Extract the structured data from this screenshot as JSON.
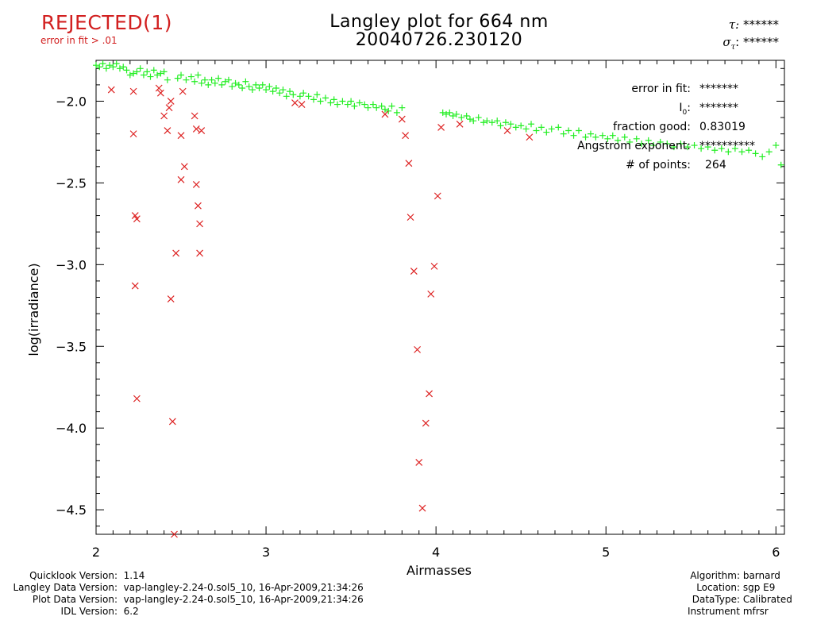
{
  "header": {
    "status": "REJECTED(1)",
    "status_sub": "error in fit > .01",
    "title_line1": "Langley plot for 664 nm",
    "title_line2": "20040726.230120",
    "tau_label": "τ:",
    "tau_value": "******",
    "sigma_label": "σ",
    "sigma_sub": "τ",
    "sigma_colon": ":",
    "sigma_value": "******"
  },
  "stats": {
    "error_label": "error in fit:",
    "error_value": "*******",
    "i0_label": "I",
    "i0_sub": "0",
    "i0_colon": ":",
    "i0_value": "*******",
    "fraction_label": "fraction good:",
    "fraction_value": "0.83019",
    "angstrom_label": "Angstrom exponent:",
    "angstrom_value": "**********",
    "points_label": "# of points:",
    "points_value": "264"
  },
  "footer_left": [
    {
      "label": "Quicklook Version:",
      "value": "1.14"
    },
    {
      "label": "Langley Data Version:",
      "value": "vap-langley-2.24-0.sol5_10, 16-Apr-2009,21:34:26"
    },
    {
      "label": "Plot Data Version:",
      "value": "vap-langley-2.24-0.sol5_10, 16-Apr-2009,21:34:26"
    },
    {
      "label": "IDL Version:",
      "value": "6.2"
    }
  ],
  "footer_right": [
    {
      "label": "Algorithm:",
      "value": "barnard"
    },
    {
      "label": "Location:",
      "value": "sgp E9"
    },
    {
      "label": "DataType:",
      "value": "Calibrated"
    },
    {
      "label": "Instrument",
      "value": "mfrsr"
    }
  ],
  "chart_data": {
    "type": "scatter",
    "title": "Langley plot for 664 nm",
    "subtitle": "20040726.230120",
    "xlabel": "Airmasses",
    "ylabel": "log(irradiance)",
    "xlim": [
      2.0,
      6.05
    ],
    "ylim": [
      -4.65,
      -1.75
    ],
    "x_ticks": [
      2,
      3,
      4,
      5,
      6
    ],
    "x_tick_labels": [
      "2",
      "3",
      "4",
      "5",
      "6"
    ],
    "y_ticks": [
      -2.0,
      -2.5,
      -3.0,
      -3.5,
      -4.0,
      -4.5
    ],
    "y_tick_labels": [
      "-2.0",
      "-2.5",
      "-3.0",
      "-3.5",
      "-4.0",
      "-4.5"
    ],
    "colors": {
      "good": "#22ee22",
      "rejected": "#dd2222"
    },
    "series": [
      {
        "marker": "plus",
        "color": "#22ee22",
        "points": [
          [
            2.0,
            -1.78
          ],
          [
            2.02,
            -1.79
          ],
          [
            2.04,
            -1.77
          ],
          [
            2.06,
            -1.8
          ],
          [
            2.08,
            -1.78
          ],
          [
            2.1,
            -1.79
          ],
          [
            2.12,
            -1.77
          ],
          [
            2.14,
            -1.8
          ],
          [
            2.16,
            -1.79
          ],
          [
            2.18,
            -1.81
          ],
          [
            2.2,
            -1.84
          ],
          [
            2.22,
            -1.83
          ],
          [
            2.24,
            -1.82
          ],
          [
            2.26,
            -1.8
          ],
          [
            2.28,
            -1.84
          ],
          [
            2.3,
            -1.82
          ],
          [
            2.32,
            -1.85
          ],
          [
            2.34,
            -1.81
          ],
          [
            2.36,
            -1.84
          ],
          [
            2.38,
            -1.83
          ],
          [
            2.4,
            -1.82
          ],
          [
            2.42,
            -1.87
          ],
          [
            2.48,
            -1.86
          ],
          [
            2.5,
            -1.84
          ],
          [
            2.53,
            -1.87
          ],
          [
            2.56,
            -1.85
          ],
          [
            2.58,
            -1.88
          ],
          [
            2.6,
            -1.84
          ],
          [
            2.62,
            -1.89
          ],
          [
            2.64,
            -1.87
          ],
          [
            2.66,
            -1.9
          ],
          [
            2.68,
            -1.87
          ],
          [
            2.7,
            -1.89
          ],
          [
            2.72,
            -1.86
          ],
          [
            2.74,
            -1.9
          ],
          [
            2.76,
            -1.88
          ],
          [
            2.78,
            -1.87
          ],
          [
            2.8,
            -1.91
          ],
          [
            2.82,
            -1.89
          ],
          [
            2.84,
            -1.9
          ],
          [
            2.86,
            -1.92
          ],
          [
            2.88,
            -1.88
          ],
          [
            2.9,
            -1.91
          ],
          [
            2.92,
            -1.93
          ],
          [
            2.94,
            -1.9
          ],
          [
            2.96,
            -1.92
          ],
          [
            2.98,
            -1.9
          ],
          [
            3.0,
            -1.93
          ],
          [
            3.02,
            -1.91
          ],
          [
            3.04,
            -1.94
          ],
          [
            3.06,
            -1.92
          ],
          [
            3.08,
            -1.95
          ],
          [
            3.1,
            -1.93
          ],
          [
            3.12,
            -1.97
          ],
          [
            3.14,
            -1.94
          ],
          [
            3.16,
            -1.96
          ],
          [
            3.2,
            -1.97
          ],
          [
            3.22,
            -1.95
          ],
          [
            3.25,
            -1.97
          ],
          [
            3.28,
            -1.99
          ],
          [
            3.3,
            -1.96
          ],
          [
            3.32,
            -2.0
          ],
          [
            3.35,
            -1.98
          ],
          [
            3.38,
            -2.01
          ],
          [
            3.4,
            -1.99
          ],
          [
            3.42,
            -2.02
          ],
          [
            3.45,
            -2.0
          ],
          [
            3.48,
            -2.02
          ],
          [
            3.5,
            -2.0
          ],
          [
            3.52,
            -2.03
          ],
          [
            3.55,
            -2.01
          ],
          [
            3.58,
            -2.02
          ],
          [
            3.6,
            -2.04
          ],
          [
            3.63,
            -2.02
          ],
          [
            3.65,
            -2.04
          ],
          [
            3.68,
            -2.03
          ],
          [
            3.7,
            -2.05
          ],
          [
            3.72,
            -2.06
          ],
          [
            3.74,
            -2.03
          ],
          [
            3.77,
            -2.07
          ],
          [
            3.8,
            -2.04
          ],
          [
            4.04,
            -2.07
          ],
          [
            4.06,
            -2.08
          ],
          [
            4.08,
            -2.07
          ],
          [
            4.1,
            -2.09
          ],
          [
            4.12,
            -2.08
          ],
          [
            4.15,
            -2.1
          ],
          [
            4.18,
            -2.09
          ],
          [
            4.2,
            -2.11
          ],
          [
            4.22,
            -2.12
          ],
          [
            4.25,
            -2.1
          ],
          [
            4.28,
            -2.13
          ],
          [
            4.3,
            -2.12
          ],
          [
            4.33,
            -2.13
          ],
          [
            4.36,
            -2.12
          ],
          [
            4.38,
            -2.15
          ],
          [
            4.41,
            -2.13
          ],
          [
            4.44,
            -2.14
          ],
          [
            4.47,
            -2.16
          ],
          [
            4.5,
            -2.15
          ],
          [
            4.53,
            -2.17
          ],
          [
            4.56,
            -2.14
          ],
          [
            4.59,
            -2.18
          ],
          [
            4.62,
            -2.16
          ],
          [
            4.65,
            -2.19
          ],
          [
            4.68,
            -2.17
          ],
          [
            4.72,
            -2.16
          ],
          [
            4.75,
            -2.2
          ],
          [
            4.78,
            -2.18
          ],
          [
            4.81,
            -2.21
          ],
          [
            4.84,
            -2.18
          ],
          [
            4.88,
            -2.22
          ],
          [
            4.91,
            -2.2
          ],
          [
            4.94,
            -2.22
          ],
          [
            4.98,
            -2.21
          ],
          [
            5.01,
            -2.23
          ],
          [
            5.04,
            -2.21
          ],
          [
            5.07,
            -2.24
          ],
          [
            5.11,
            -2.22
          ],
          [
            5.14,
            -2.25
          ],
          [
            5.18,
            -2.23
          ],
          [
            5.21,
            -2.26
          ],
          [
            5.25,
            -2.24
          ],
          [
            5.28,
            -2.27
          ],
          [
            5.32,
            -2.25
          ],
          [
            5.36,
            -2.26
          ],
          [
            5.4,
            -2.28
          ],
          [
            5.44,
            -2.26
          ],
          [
            5.48,
            -2.28
          ],
          [
            5.52,
            -2.27
          ],
          [
            5.56,
            -2.29
          ],
          [
            5.6,
            -2.28
          ],
          [
            5.64,
            -2.3
          ],
          [
            5.68,
            -2.29
          ],
          [
            5.72,
            -2.31
          ],
          [
            5.76,
            -2.29
          ],
          [
            5.8,
            -2.31
          ],
          [
            5.84,
            -2.3
          ],
          [
            5.88,
            -2.32
          ],
          [
            5.92,
            -2.34
          ],
          [
            5.96,
            -2.31
          ],
          [
            6.0,
            -2.27
          ],
          [
            6.03,
            -2.39
          ]
        ]
      },
      {
        "marker": "x",
        "color": "#dd2222",
        "points": [
          [
            2.09,
            -1.93
          ],
          [
            2.22,
            -1.94
          ],
          [
            2.22,
            -2.2
          ],
          [
            2.23,
            -2.7
          ],
          [
            2.24,
            -2.72
          ],
          [
            2.23,
            -3.13
          ],
          [
            2.24,
            -3.82
          ],
          [
            2.37,
            -1.92
          ],
          [
            2.38,
            -1.95
          ],
          [
            2.4,
            -2.09
          ],
          [
            2.42,
            -2.18
          ],
          [
            2.43,
            -2.04
          ],
          [
            2.44,
            -2.0
          ],
          [
            2.44,
            -3.21
          ],
          [
            2.45,
            -3.96
          ],
          [
            2.46,
            -4.65
          ],
          [
            2.47,
            -2.93
          ],
          [
            2.5,
            -2.21
          ],
          [
            2.51,
            -1.94
          ],
          [
            2.52,
            -2.4
          ],
          [
            2.5,
            -2.48
          ],
          [
            2.58,
            -2.09
          ],
          [
            2.59,
            -2.17
          ],
          [
            2.59,
            -2.51
          ],
          [
            2.6,
            -2.64
          ],
          [
            2.61,
            -2.75
          ],
          [
            2.61,
            -2.93
          ],
          [
            2.62,
            -2.18
          ],
          [
            3.17,
            -2.01
          ],
          [
            3.21,
            -2.02
          ],
          [
            3.7,
            -2.08
          ],
          [
            3.8,
            -2.11
          ],
          [
            3.82,
            -2.21
          ],
          [
            3.84,
            -2.38
          ],
          [
            3.85,
            -2.71
          ],
          [
            3.87,
            -3.04
          ],
          [
            3.89,
            -3.52
          ],
          [
            3.9,
            -4.21
          ],
          [
            3.92,
            -4.49
          ],
          [
            3.94,
            -3.97
          ],
          [
            3.96,
            -3.79
          ],
          [
            3.97,
            -3.18
          ],
          [
            3.99,
            -3.01
          ],
          [
            4.01,
            -2.58
          ],
          [
            4.03,
            -2.16
          ],
          [
            4.14,
            -2.14
          ],
          [
            4.42,
            -2.18
          ],
          [
            4.55,
            -2.22
          ]
        ]
      }
    ]
  }
}
